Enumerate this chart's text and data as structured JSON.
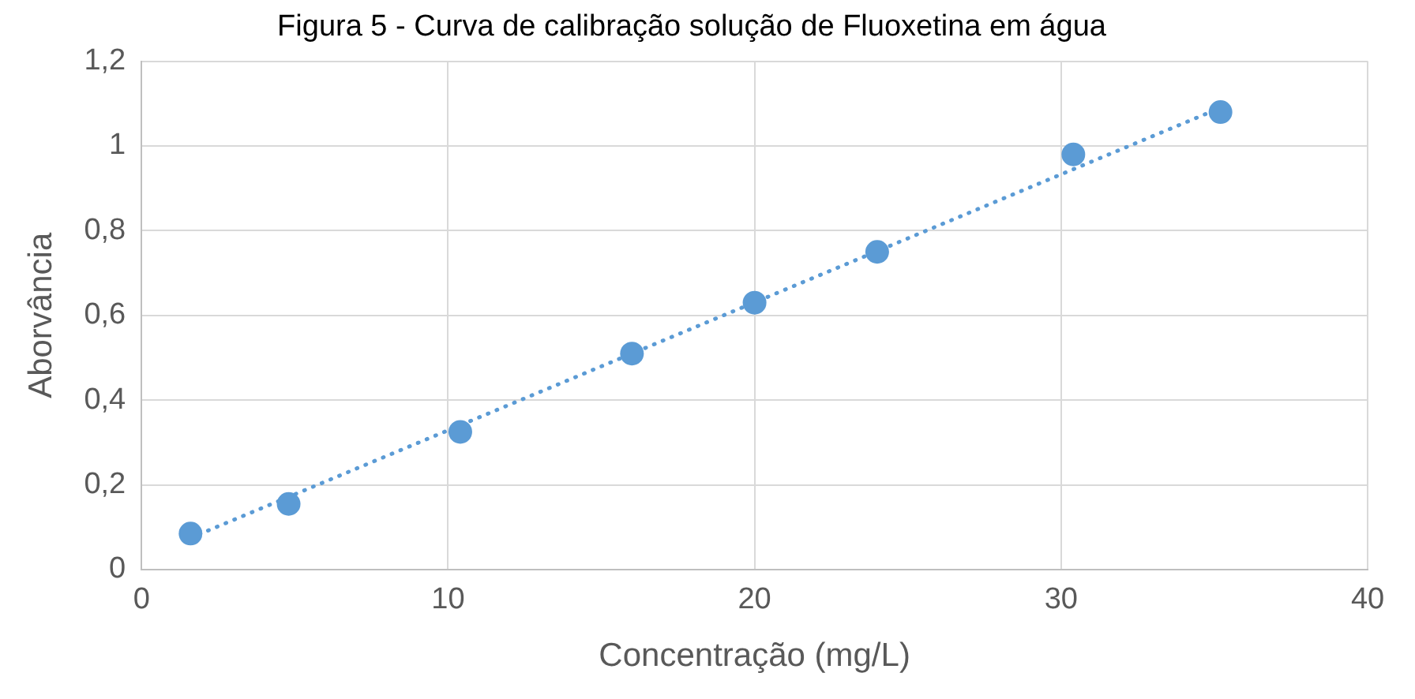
{
  "chart_data": {
    "type": "scatter",
    "title": "Figura 5 - Curva de calibração solução de Fluoxetina em água",
    "xlabel": "Concentração (mg/L)",
    "ylabel": "Aborvância",
    "series": [
      {
        "color": "#5b9bd5",
        "x": [
          1.6,
          4.8,
          10.4,
          16,
          20,
          24,
          30.4,
          35.2
        ],
        "values": [
          0.085,
          0.155,
          0.325,
          0.51,
          0.63,
          0.75,
          0.98,
          1.08
        ],
        "marker": "circle"
      },
      {
        "type": "line",
        "color": "#5b9bd5",
        "x": [
          1.6,
          35.2
        ],
        "values": [
          0.075,
          1.09
        ],
        "line_style": "dotted",
        "marker": "none"
      }
    ],
    "xlim": [
      0,
      40
    ],
    "xticks": [
      0,
      10,
      20,
      30,
      40
    ],
    "ylim": [
      0,
      1.2
    ],
    "yticks": [
      0,
      {
        "value": 0.2,
        "label": "0,2"
      },
      {
        "value": 0.4,
        "label": "0,4"
      },
      {
        "value": 0.6,
        "label": "0,6"
      },
      {
        "value": 0.8,
        "label": "0,8"
      },
      1,
      {
        "value": 1.2,
        "label": "1,2"
      }
    ],
    "grid": true,
    "legend": false
  }
}
